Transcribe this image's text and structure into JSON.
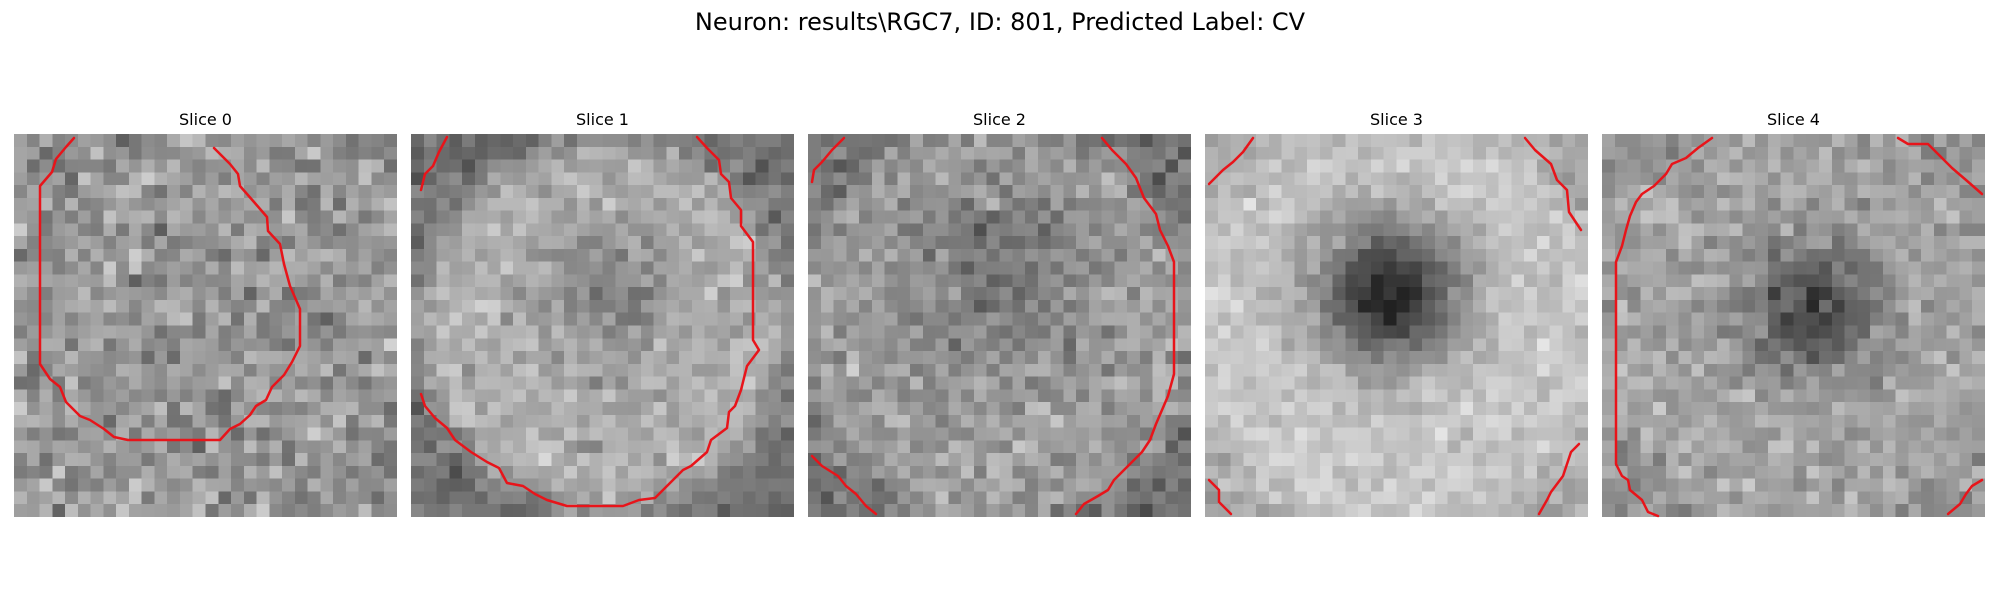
{
  "figure": {
    "title": "Neuron: results\\RGC7, ID: 801, Predicted Label: CV",
    "colormap": "grayscale",
    "contour_color": "#e8141a"
  },
  "slices": [
    {
      "title": "Slice 0",
      "dark_blob": "none"
    },
    {
      "title": "Slice 1",
      "dark_blob": "faint-center"
    },
    {
      "title": "Slice 2",
      "dark_blob": "faint-upper-center"
    },
    {
      "title": "Slice 3",
      "dark_blob": "strong-center"
    },
    {
      "title": "Slice 4",
      "dark_blob": "medium-center-right"
    }
  ]
}
